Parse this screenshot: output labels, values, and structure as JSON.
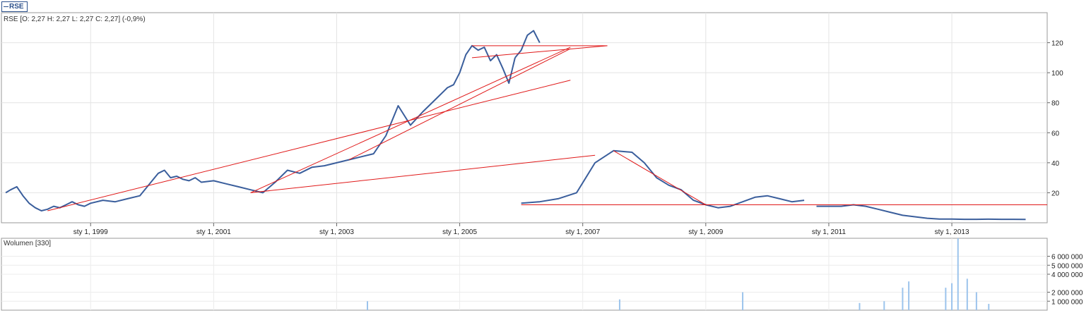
{
  "legend": {
    "symbol": "RSE"
  },
  "chart_data": [
    {
      "type": "line",
      "panel_label": "RSE [O: 2,27  H: 2,27  L: 2,27  C: 2,27] (-0,9%)",
      "series_color": "#3a5e9c",
      "trendline_color": "#e01818",
      "x_tick_labels": [
        "sty 1, 1999",
        "sty 1, 2001",
        "sty 1, 2003",
        "sty 1, 2005",
        "sty 1, 2007",
        "sty 1, 2009",
        "sty 1, 2011",
        "sty 1, 2013"
      ],
      "x_tick_years": [
        1999,
        2001,
        2003,
        2005,
        2007,
        2009,
        2011,
        2013
      ],
      "x_range": [
        1997.55,
        2014.55
      ],
      "y_ticks": [
        20,
        40,
        60,
        80,
        100,
        120
      ],
      "y_range": [
        0,
        140
      ],
      "grid": true,
      "series": [
        {
          "segments": [
            {
              "x": [
                1997.62,
                1997.7,
                1997.8,
                1997.9,
                1998.0,
                1998.1,
                1998.2,
                1998.3,
                1998.4,
                1998.5,
                1998.6,
                1998.7,
                1998.8,
                1998.9,
                1999.0,
                1999.2,
                1999.4,
                1999.6,
                1999.8,
                2000.0,
                2000.1,
                2000.2,
                2000.3,
                2000.4,
                2000.5,
                2000.6,
                2000.7,
                2000.8,
                2001.0,
                2001.2,
                2001.4,
                2001.6,
                2001.8,
                2002.0,
                2002.2,
                2002.4,
                2002.6,
                2002.8,
                2003.0,
                2003.2,
                2003.4,
                2003.6,
                2003.8,
                2004.0,
                2004.2,
                2004.4,
                2004.6,
                2004.8,
                2004.9,
                2005.0,
                2005.1,
                2005.2,
                2005.3,
                2005.4,
                2005.5,
                2005.6,
                2005.7,
                2005.8,
                2005.9
              ],
              "y": [
                20,
                22,
                24,
                18,
                13,
                10,
                8,
                9,
                11,
                10,
                12,
                14,
                12,
                11,
                13,
                15,
                14,
                16,
                18,
                28,
                33,
                35,
                30,
                31,
                29,
                28,
                30,
                27,
                28,
                26,
                24,
                22,
                20,
                27,
                35,
                33,
                37,
                38,
                40,
                42,
                44,
                46,
                58,
                78,
                65,
                74,
                82,
                90,
                92,
                100,
                112,
                118,
                115,
                117,
                108,
                112,
                103,
                93,
                110
              ]
            },
            {
              "x": [
                2005.9,
                2006.0,
                2006.1,
                2006.2,
                2006.3
              ],
              "y": [
                110,
                115,
                125,
                128,
                120
              ]
            },
            {
              "x": [
                2006.0,
                2006.3,
                2006.6,
                2006.9,
                2007.2,
                2007.5,
                2007.8,
                2008.0,
                2008.2,
                2008.4,
                2008.6,
                2008.8,
                2009.0,
                2009.2,
                2009.4,
                2009.6,
                2009.8,
                2010.0,
                2010.2,
                2010.4,
                2010.6
              ],
              "y": [
                13,
                14,
                16,
                20,
                40,
                48,
                47,
                40,
                30,
                25,
                22,
                15,
                12,
                10,
                11,
                14,
                17,
                18,
                16,
                14,
                15
              ]
            },
            {
              "x": [
                2010.8,
                2011.0,
                2011.2,
                2011.4,
                2011.6,
                2011.8,
                2012.0,
                2012.2,
                2012.4,
                2012.6,
                2012.8,
                2013.0,
                2013.2,
                2013.4,
                2013.6,
                2013.8,
                2014.0,
                2014.2
              ],
              "y": [
                11,
                11,
                11,
                12,
                11,
                9,
                7,
                5,
                4,
                3,
                2.5,
                2.5,
                2.3,
                2.3,
                2.4,
                2.3,
                2.3,
                2.27
              ]
            }
          ]
        }
      ],
      "trendlines": [
        {
          "x": [
            1998.3,
            2006.8
          ],
          "y": [
            8,
            95
          ]
        },
        {
          "x": [
            2001.6,
            2006.8
          ],
          "y": [
            20,
            117
          ]
        },
        {
          "x": [
            2001.6,
            2007.2
          ],
          "y": [
            20,
            45
          ]
        },
        {
          "x": [
            2003.2,
            2006.8
          ],
          "y": [
            42,
            116
          ]
        },
        {
          "x": [
            2005.2,
            2007.4
          ],
          "y": [
            110,
            118
          ]
        },
        {
          "x": [
            2005.2,
            2007.4
          ],
          "y": [
            118,
            118
          ]
        },
        {
          "x": [
            2007.5,
            2009.0
          ],
          "y": [
            48,
            12
          ]
        },
        {
          "x": [
            2006.0,
            2014.55
          ],
          "y": [
            12,
            12
          ]
        }
      ]
    },
    {
      "type": "bar",
      "panel_label": "Wolumen [330]",
      "bar_color": "#9cc4ec",
      "y_ticks": [
        1000000,
        2000000,
        4000000,
        5000000,
        6000000
      ],
      "y_tick_labels": [
        "1 000 000",
        "2 000 000",
        "4 000 000",
        "5 000 000",
        "6 000 000"
      ],
      "y_range": [
        0,
        8000000
      ],
      "x_range": [
        1997.55,
        2014.55
      ],
      "bars": {
        "x": [
          2003.5,
          2007.6,
          2009.6,
          2011.5,
          2011.9,
          2012.2,
          2012.3,
          2012.9,
          2013.0,
          2013.1,
          2013.25,
          2013.4,
          2013.6
        ],
        "y": [
          1000000,
          1200000,
          2000000,
          800000,
          1000000,
          2500000,
          3200000,
          2500000,
          3000000,
          8000000,
          3500000,
          2000000,
          700000
        ]
      }
    }
  ]
}
